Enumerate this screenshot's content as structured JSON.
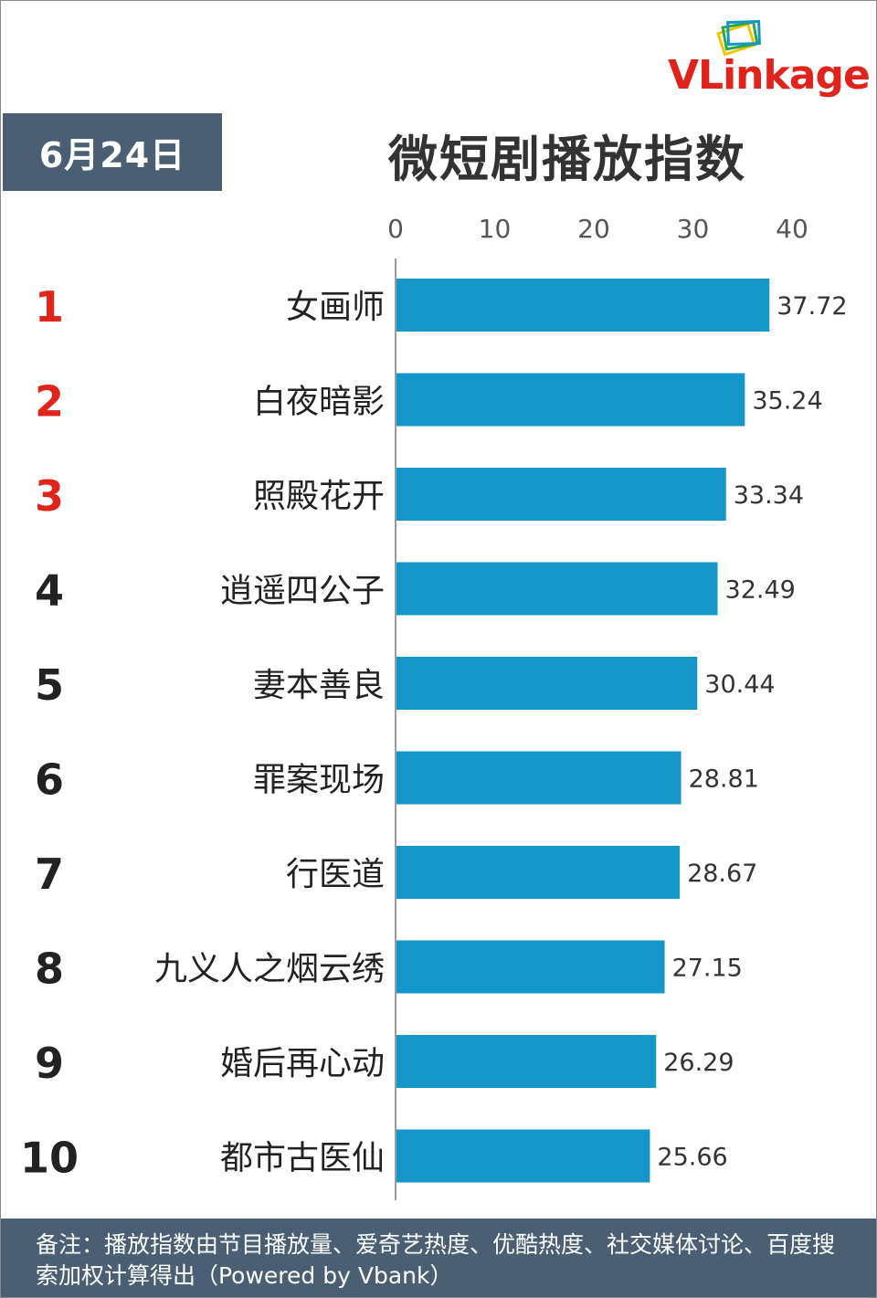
{
  "logo": {
    "text_v": "VL",
    "text_rest": "inkage"
  },
  "date_badge": "6月24日",
  "chart_data": {
    "type": "bar",
    "orientation": "horizontal",
    "title": "微短剧播放指数",
    "xlim": [
      0,
      40
    ],
    "x_ticks": [
      "0",
      "10",
      "20",
      "30",
      "40"
    ],
    "ranks": [
      "1",
      "2",
      "3",
      "4",
      "5",
      "6",
      "7",
      "8",
      "9",
      "10"
    ],
    "categories": [
      "女画师",
      "白夜暗影",
      "照殿花开",
      "逍遥四公子",
      "妻本善良",
      "罪案现场",
      "行医道",
      "九义人之烟云绣",
      "婚后再心动",
      "都市古医仙"
    ],
    "values": [
      37.72,
      35.24,
      33.34,
      32.49,
      30.44,
      28.81,
      28.67,
      27.15,
      26.29,
      25.66
    ],
    "value_labels": [
      "37.72",
      "35.24",
      "33.34",
      "32.49",
      "30.44",
      "28.81",
      "28.67",
      "27.15",
      "26.29",
      "25.66"
    ],
    "grid": false,
    "legend": "none"
  },
  "colors": {
    "bar": "#1497c8",
    "rank_top": "#e0241b",
    "rank_other": "#222222",
    "header_bg": "#4a5f74"
  },
  "footer_note": "备注：播放指数由节目播放量、爱奇艺热度、优酷热度、社交媒体讨论、百度搜索加权计算得出（Powered by Vbank）"
}
